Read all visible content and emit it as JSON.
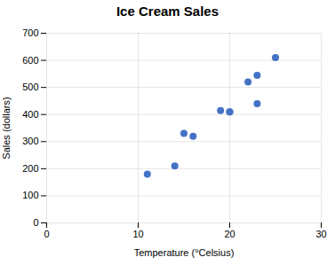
{
  "chart_data": {
    "type": "scatter",
    "title": "Ice Cream Sales",
    "xlabel": "Temperature (°Celsius)",
    "ylabel": "Sales (dollars)",
    "x": [
      11,
      14,
      15,
      16,
      19,
      20,
      20,
      22,
      23,
      23,
      25
    ],
    "values": [
      180,
      210,
      330,
      320,
      415,
      410,
      410,
      520,
      440,
      545,
      610
    ],
    "color": "#4472C4",
    "xlim": [
      0,
      30
    ],
    "ylim": [
      0,
      700
    ],
    "xticks": [
      0,
      10,
      20,
      30
    ],
    "yticks": [
      0,
      100,
      200,
      300,
      400,
      500,
      600,
      700
    ],
    "grid": true
  }
}
